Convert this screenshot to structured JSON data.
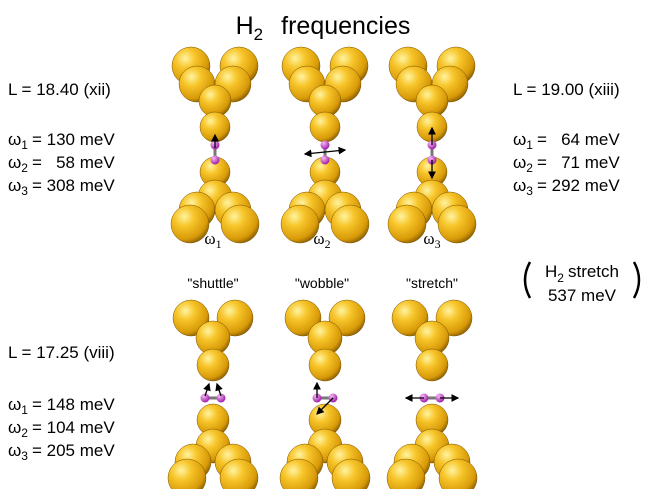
{
  "title": {
    "base": "H",
    "sub": "2",
    "rest": "frequencies"
  },
  "panels": [
    {
      "L": "L = 18.40 (xii)",
      "freqs": [
        {
          "sym": "ω",
          "sub": "1",
          "text": "= 130 meV"
        },
        {
          "sym": "ω",
          "sub": "2",
          "text": "=   58 meV"
        },
        {
          "sym": "ω",
          "sub": "3",
          "text": "= 308 meV"
        }
      ]
    },
    {
      "L": "L = 19.00 (xiii)",
      "freqs": [
        {
          "sym": "ω",
          "sub": "1",
          "text": "=   64 meV"
        },
        {
          "sym": "ω",
          "sub": "2",
          "text": "=   71 meV"
        },
        {
          "sym": "ω",
          "sub": "3",
          "text": "= 292 meV"
        }
      ]
    },
    {
      "L": "L = 17.25 (viii)",
      "freqs": [
        {
          "sym": "ω",
          "sub": "1",
          "text": "= 148 meV"
        },
        {
          "sym": "ω",
          "sub": "2",
          "text": "= 104 meV"
        },
        {
          "sym": "ω",
          "sub": "3",
          "text": "= 205 meV"
        }
      ]
    }
  ],
  "modes": [
    {
      "sym": "ω",
      "sub": "1",
      "name": "\"shuttle\""
    },
    {
      "sym": "ω",
      "sub": "2",
      "name": "\"wobble\""
    },
    {
      "sym": "ω",
      "sub": "3",
      "name": "\"stretch\""
    }
  ],
  "h2_stretch": {
    "base": "H",
    "sub": "2",
    "rest": "stretch",
    "value": "537 meV"
  }
}
